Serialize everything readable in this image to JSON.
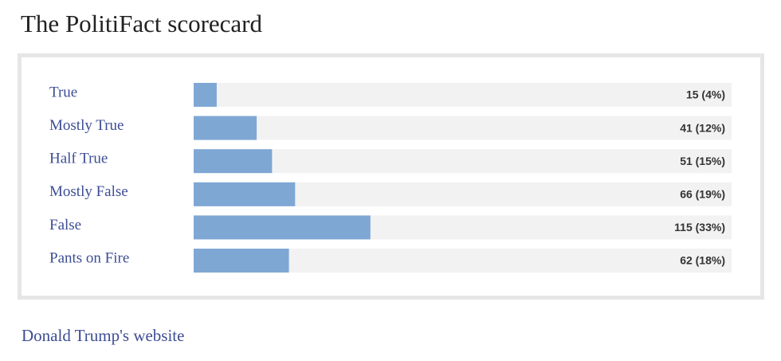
{
  "chart_data": {
    "type": "bar",
    "orientation": "horizontal",
    "title": "The PolitiFact scorecard",
    "categories": [
      "True",
      "Mostly True",
      "Half True",
      "Mostly False",
      "False",
      "Pants on Fire"
    ],
    "values": [
      15,
      41,
      51,
      66,
      115,
      62
    ],
    "value_labels": [
      "15 (4%)",
      "41 (12%)",
      "51 (15%)",
      "66 (19%)",
      "115 (33%)",
      "62 (18%)"
    ],
    "color": "#7fa7d4",
    "track_color": "#f2f2f2"
  },
  "link": "Donald Trump's website"
}
